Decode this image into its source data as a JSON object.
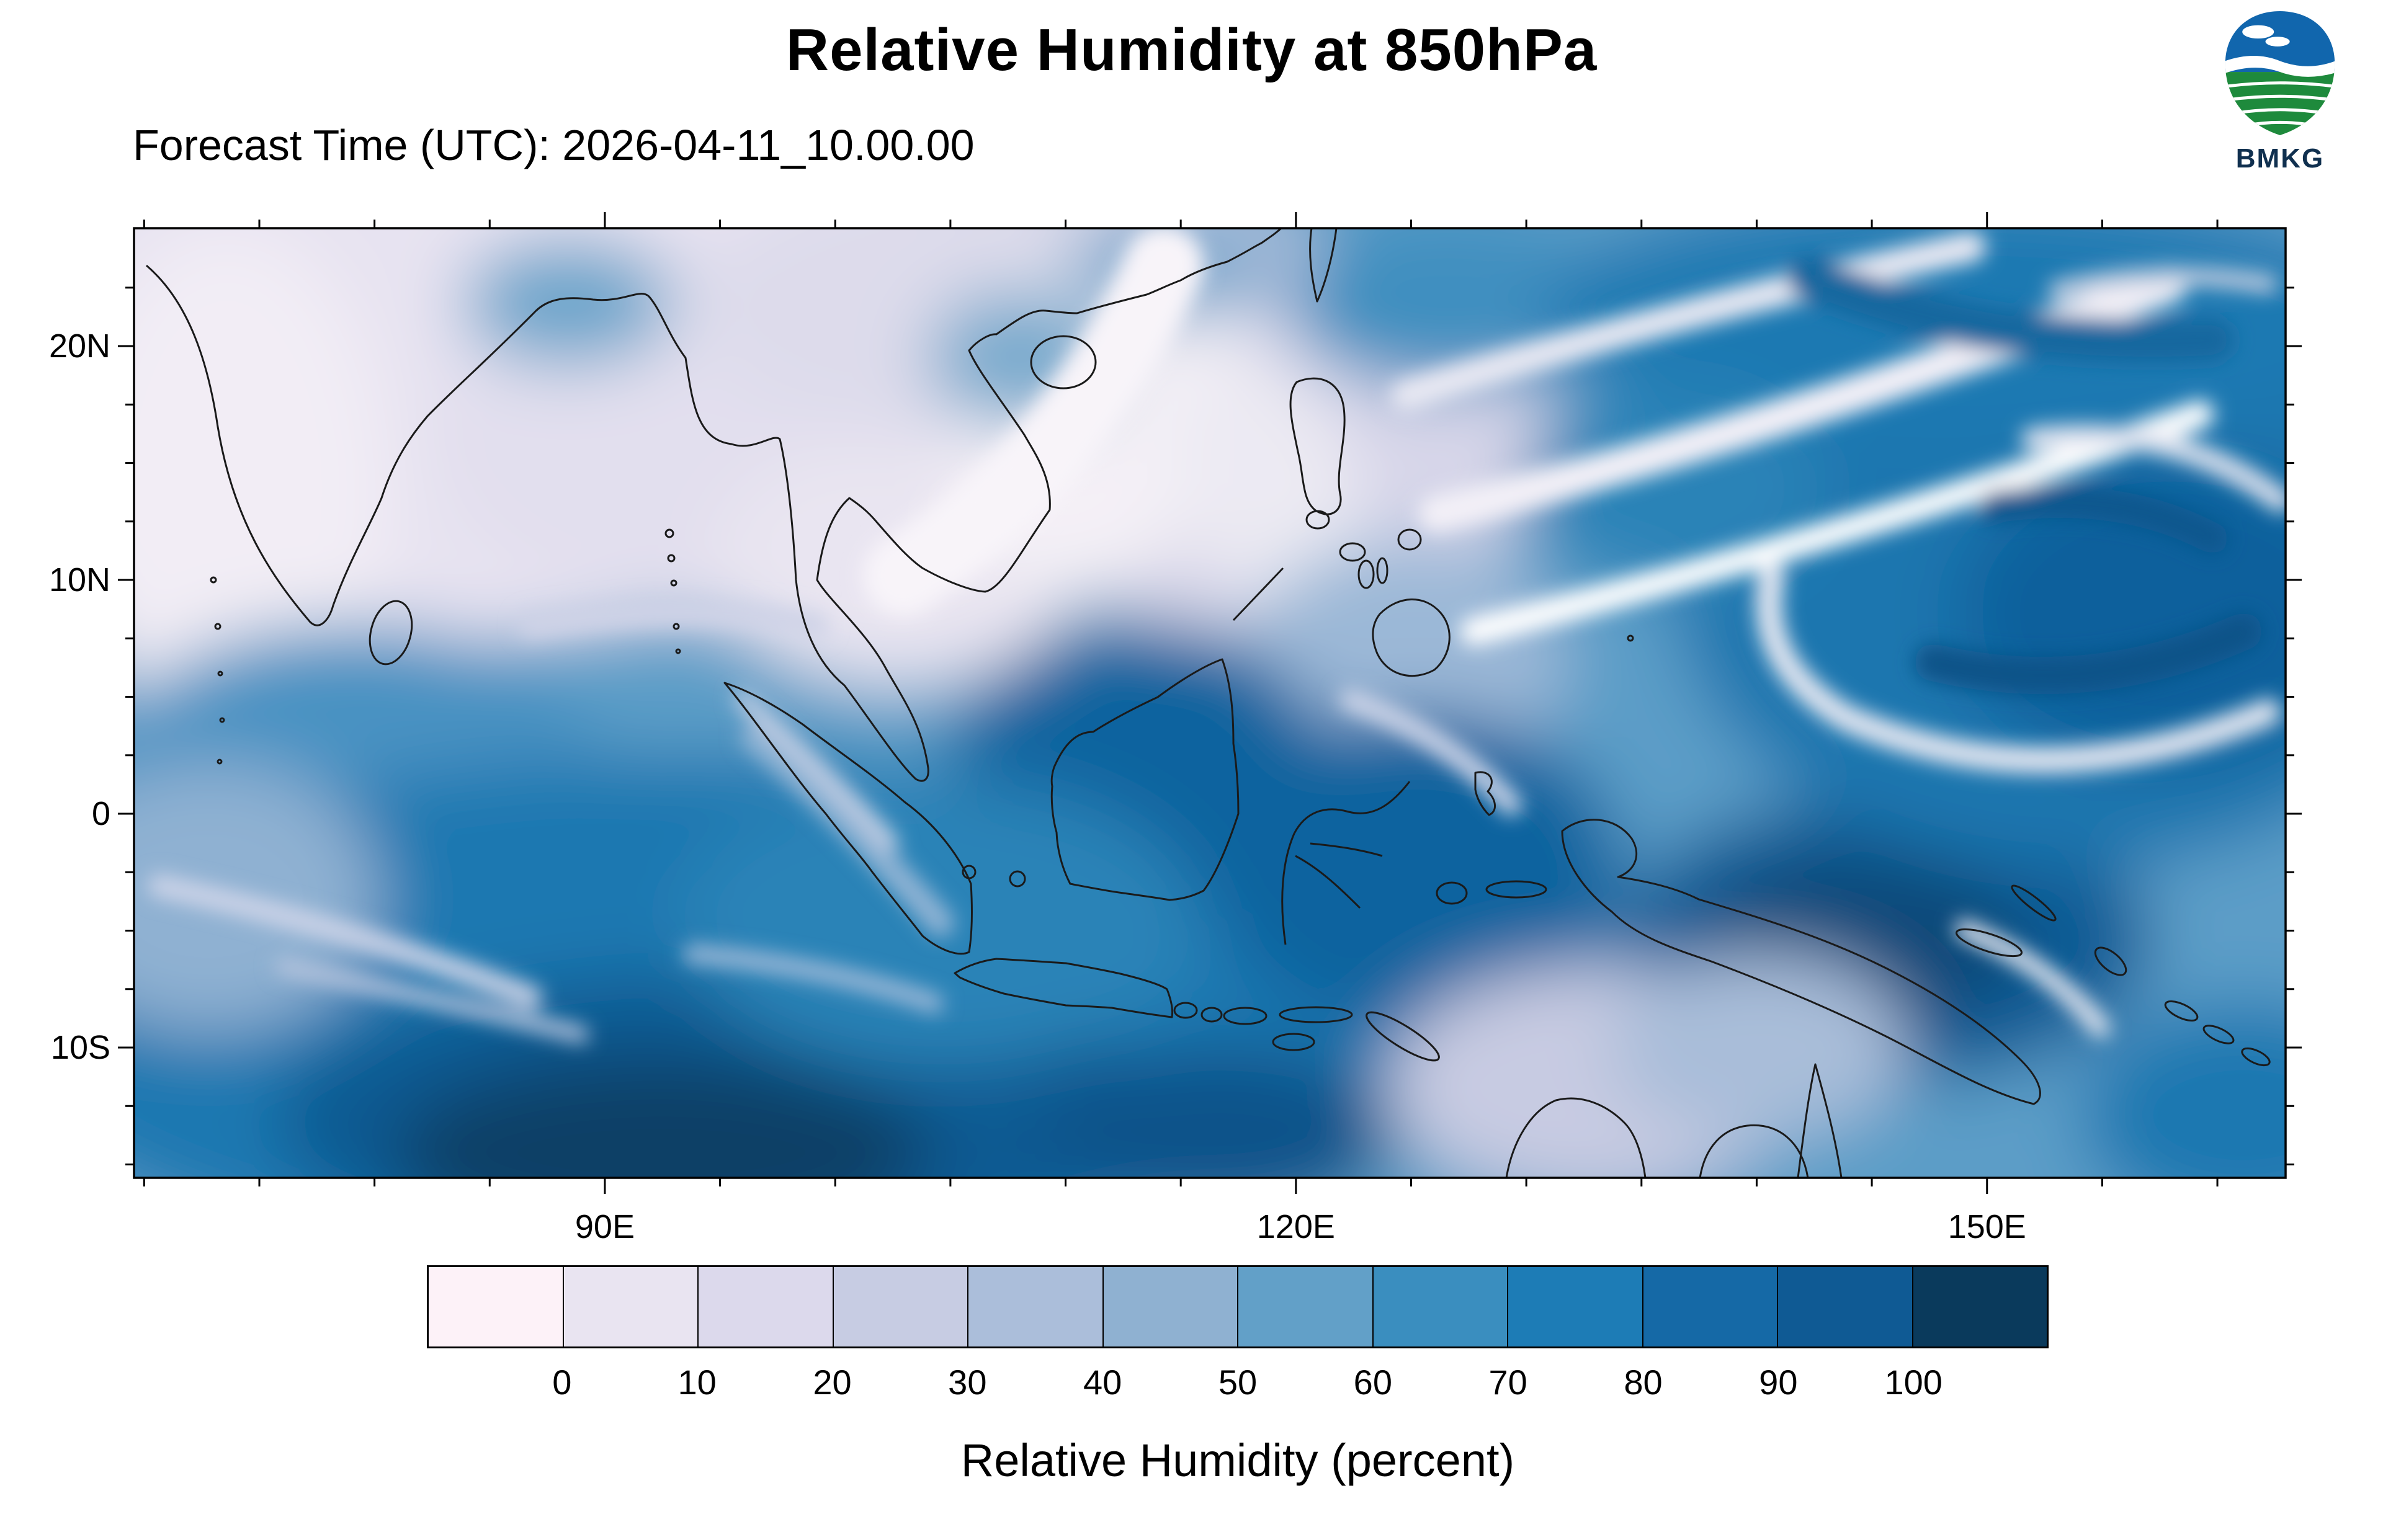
{
  "header": {
    "title": "Relative Humidity at 850hPa",
    "forecast_label": "Forecast Time (UTC): 2026-04-11_10.00.00",
    "logo_text": "BMKG"
  },
  "map_axes": {
    "y_tick_labels": [
      "20N",
      "10N",
      "0",
      "10S"
    ],
    "x_tick_labels": [
      "90E",
      "120E",
      "150E"
    ]
  },
  "colorbar": {
    "tick_labels": [
      "0",
      "10",
      "20",
      "30",
      "40",
      "50",
      "60",
      "70",
      "80",
      "90",
      "100"
    ],
    "colors": [
      "#fdf2f8",
      "#e9e4f1",
      "#dcd9ec",
      "#c7cce3",
      "#abbeda",
      "#8fb1d1",
      "#62a0c8",
      "#3a8ebf",
      "#1d7cb6",
      "#1569a6",
      "#0f5a94",
      "#0a3a5c"
    ],
    "label": "Relative Humidity (percent)"
  },
  "chart_data": {
    "type": "heatmap",
    "title": "Relative Humidity at 850hPa",
    "forecast_time_utc": "2026-04-11_10.00.00",
    "variable": "Relative Humidity",
    "units": "percent",
    "pressure_level": "850hPa",
    "source_logo": "BMKG",
    "x_ticks": [
      "90E",
      "120E",
      "150E"
    ],
    "y_ticks": [
      "20N",
      "10N",
      "0",
      "10S"
    ],
    "colorbar_levels": [
      0,
      10,
      20,
      30,
      40,
      50,
      60,
      70,
      80,
      90,
      100
    ],
    "colorbar_colors": [
      "#fdf2f8",
      "#e9e4f1",
      "#dcd9ec",
      "#c7cce3",
      "#abbeda",
      "#8fb1d1",
      "#62a0c8",
      "#3a8ebf",
      "#1d7cb6",
      "#1569a6",
      "#0f5a94",
      "#0a3a5c"
    ],
    "legend_position": "bottom",
    "grid": false
  }
}
